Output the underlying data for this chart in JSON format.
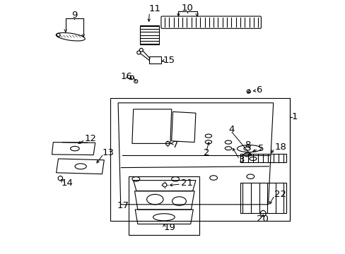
{
  "bg_color": "#ffffff",
  "line_color": "#000000",
  "font_size": 9.5,
  "lw": 0.8
}
